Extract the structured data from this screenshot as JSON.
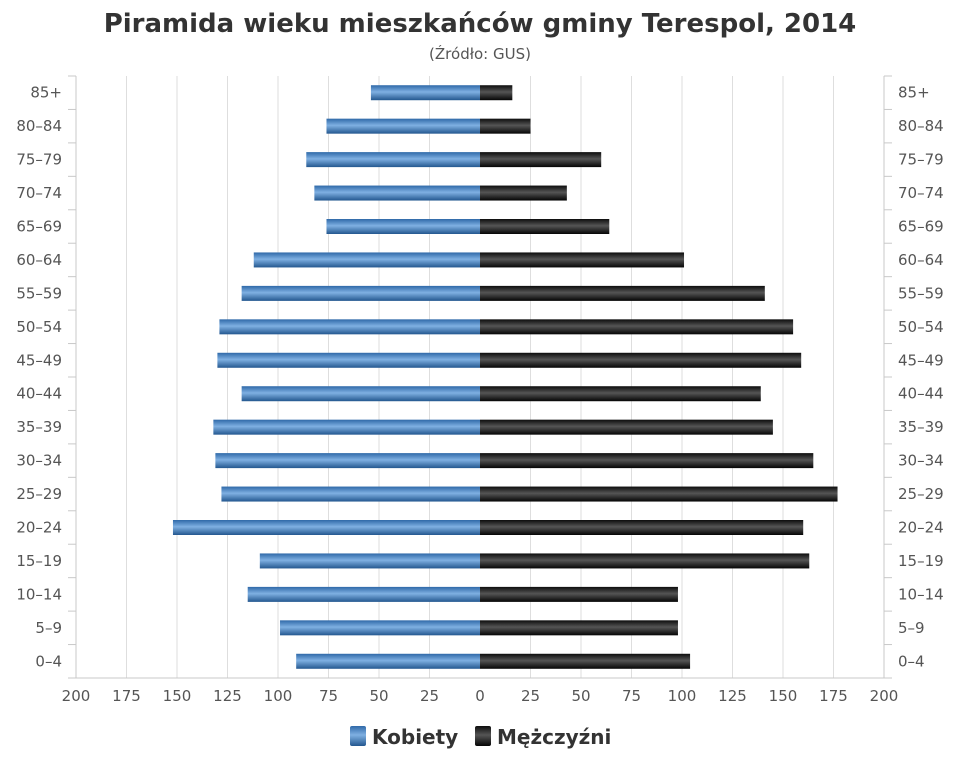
{
  "chart_data": {
    "type": "bar",
    "orientation": "horizontal",
    "layout": "population-pyramid",
    "title": "Piramida wieku mieszkańców gminy Terespol, 2014",
    "subtitle": "(Źródło: GUS)",
    "categories": [
      "0–4",
      "5–9",
      "10–14",
      "15–19",
      "20–24",
      "25–29",
      "30–34",
      "35–39",
      "40–44",
      "45–49",
      "50–54",
      "55–59",
      "60–64",
      "65–69",
      "70–74",
      "75–79",
      "80–84",
      "85+"
    ],
    "series": [
      {
        "name": "Kobiety",
        "side": "left",
        "color": "#4a86c8",
        "values": [
          91,
          99,
          115,
          109,
          152,
          128,
          131,
          132,
          118,
          130,
          129,
          118,
          112,
          76,
          82,
          86,
          76,
          54
        ]
      },
      {
        "name": "Mężczyźni",
        "side": "right",
        "color": "#1e1e1e",
        "values": [
          104,
          98,
          98,
          163,
          160,
          177,
          165,
          145,
          139,
          159,
          155,
          141,
          101,
          64,
          43,
          60,
          25,
          16
        ]
      }
    ],
    "xlim": [
      -200,
      200
    ],
    "x_ticks": [
      -200,
      -175,
      -150,
      -125,
      -100,
      -75,
      -50,
      -25,
      0,
      25,
      50,
      75,
      100,
      125,
      150,
      175,
      200
    ],
    "x_tick_labels": [
      "200",
      "175",
      "150",
      "125",
      "100",
      "75",
      "50",
      "25",
      "0",
      "25",
      "50",
      "75",
      "100",
      "125",
      "150",
      "175",
      "200"
    ],
    "grid": true,
    "legend_position": "bottom-center"
  }
}
